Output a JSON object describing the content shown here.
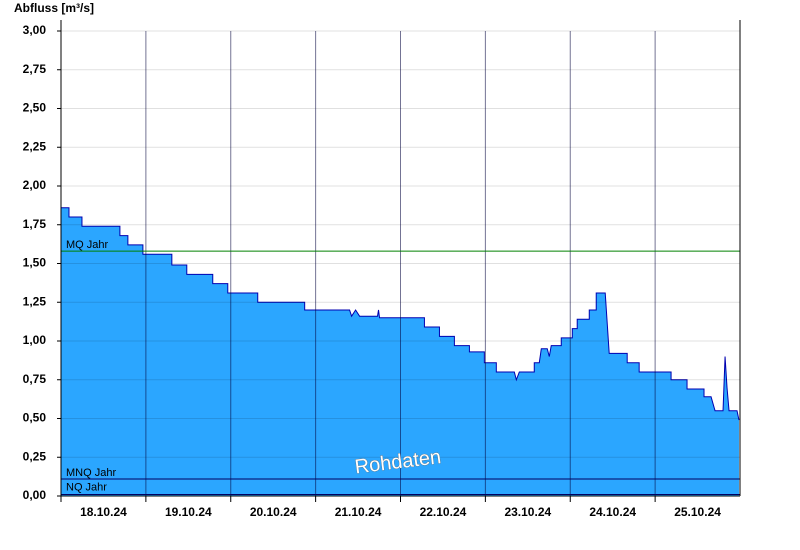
{
  "chart_data": {
    "type": "area",
    "title": "Abfluss [m³/s]",
    "annotation": "Rohdaten",
    "xlim": [
      0,
      8
    ],
    "xticks": [
      {
        "value": 0,
        "label": "18.10.24"
      },
      {
        "value": 1,
        "label": "19.10.24"
      },
      {
        "value": 2,
        "label": "20.10.24"
      },
      {
        "value": 3,
        "label": "21.10.24"
      },
      {
        "value": 4,
        "label": "22.10.24"
      },
      {
        "value": 5,
        "label": "23.10.24"
      },
      {
        "value": 6,
        "label": "24.10.24"
      },
      {
        "value": 7,
        "label": "25.10.24"
      }
    ],
    "ylim": [
      0,
      3
    ],
    "yticks": [
      {
        "value": 0,
        "label": "0,00"
      },
      {
        "value": 0.25,
        "label": "0,25"
      },
      {
        "value": 0.5,
        "label": "0,50"
      },
      {
        "value": 0.75,
        "label": "0,75"
      },
      {
        "value": 1,
        "label": "1,00"
      },
      {
        "value": 1.25,
        "label": "1,25"
      },
      {
        "value": 1.5,
        "label": "1,50"
      },
      {
        "value": 1.75,
        "label": "1,75"
      },
      {
        "value": 2,
        "label": "2,00"
      },
      {
        "value": 2.25,
        "label": "2,25"
      },
      {
        "value": 2.5,
        "label": "2,50"
      },
      {
        "value": 2.75,
        "label": "2,75"
      },
      {
        "value": 3,
        "label": "3,00"
      }
    ],
    "grid": true,
    "color": "#2ba6ff",
    "line_color": "#0000b0",
    "x": [
      0,
      0.094,
      0.094,
      0.247,
      0.247,
      0.694,
      0.694,
      0.788,
      0.788,
      0.965,
      0.965,
      1.306,
      1.306,
      1.482,
      1.482,
      1.788,
      1.788,
      1.965,
      1.965,
      2.318,
      2.318,
      2.871,
      2.871,
      3.4,
      3.424,
      3.471,
      3.518,
      3.729,
      3.741,
      3.753,
      4.282,
      4.282,
      4.459,
      4.459,
      4.635,
      4.635,
      4.812,
      4.812,
      4.988,
      4.988,
      5.129,
      5.129,
      5.341,
      5.365,
      5.4,
      5.576,
      5.576,
      5.635,
      5.659,
      5.729,
      5.753,
      5.776,
      5.894,
      5.894,
      6.024,
      6.024,
      6.082,
      6.082,
      6.224,
      6.224,
      6.306,
      6.306,
      6.412,
      6.459,
      6.671,
      6.671,
      6.812,
      6.812,
      7.188,
      7.188,
      7.376,
      7.376,
      7.576,
      7.576,
      7.659,
      7.706,
      7.8,
      7.824,
      7.847,
      7.871,
      7.965,
      7.988
    ],
    "values": [
      1.86,
      1.86,
      1.8,
      1.8,
      1.74,
      1.74,
      1.68,
      1.68,
      1.62,
      1.62,
      1.56,
      1.56,
      1.49,
      1.49,
      1.43,
      1.43,
      1.37,
      1.37,
      1.31,
      1.31,
      1.25,
      1.25,
      1.2,
      1.2,
      1.16,
      1.2,
      1.16,
      1.16,
      1.2,
      1.15,
      1.15,
      1.09,
      1.09,
      1.03,
      1.03,
      0.97,
      0.97,
      0.93,
      0.93,
      0.86,
      0.86,
      0.8,
      0.8,
      0.75,
      0.8,
      0.8,
      0.86,
      0.86,
      0.95,
      0.95,
      0.9,
      0.97,
      0.97,
      1.02,
      1.02,
      1.08,
      1.08,
      1.14,
      1.14,
      1.2,
      1.2,
      1.31,
      1.31,
      0.92,
      0.92,
      0.86,
      0.86,
      0.8,
      0.8,
      0.75,
      0.75,
      0.69,
      0.69,
      0.64,
      0.64,
      0.55,
      0.55,
      0.9,
      0.7,
      0.55,
      0.55,
      0.49
    ],
    "reference_lines": [
      {
        "label": "MQ Jahr",
        "value": 1.58,
        "color": "#008000"
      },
      {
        "label": "MNQ Jahr",
        "value": 0.11,
        "color": "#000060"
      },
      {
        "label": "NQ Jahr",
        "value": 0.01,
        "color": "#000060"
      }
    ]
  }
}
